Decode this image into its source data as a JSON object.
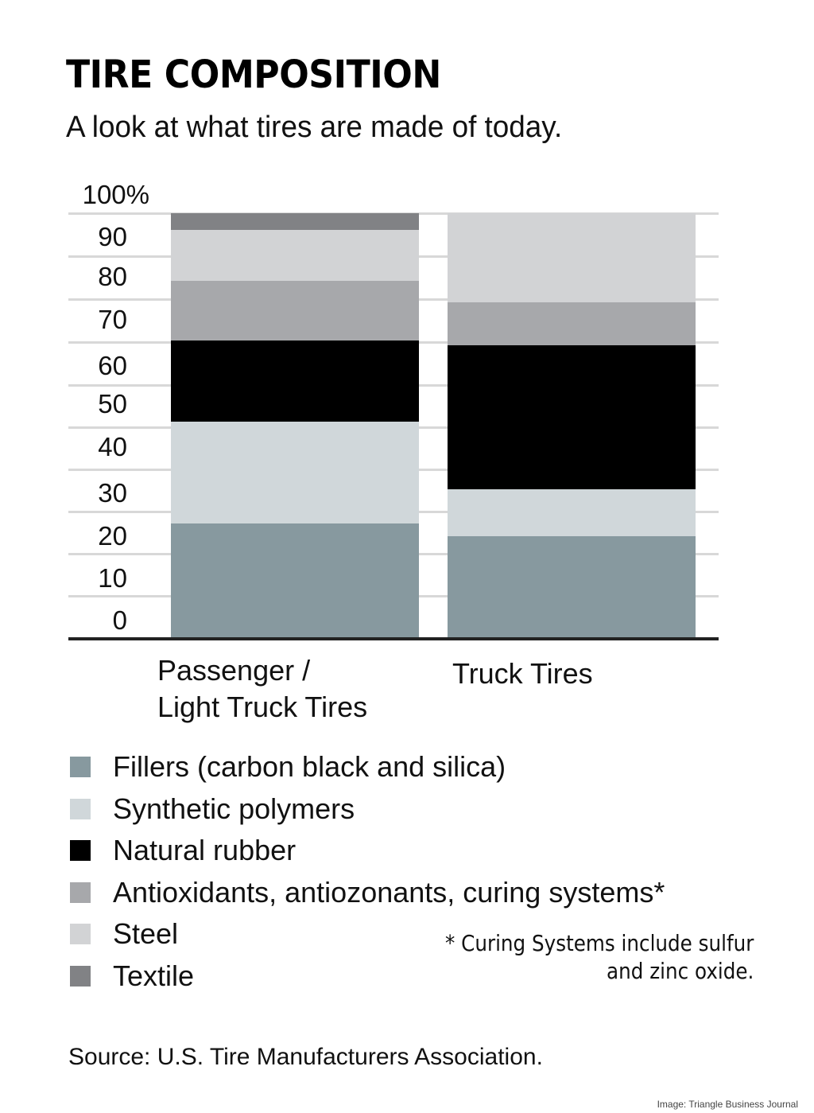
{
  "header": {
    "title": "TIRE COMPOSITION",
    "subtitle": "A look at what tires are made of today."
  },
  "axis": {
    "y_ticks": [
      "100%",
      "90",
      "80",
      "70",
      "60",
      "50",
      "40",
      "30",
      "20",
      "10",
      "0"
    ]
  },
  "categories": [
    "Passenger / Light Truck Tires",
    "Truck Tires"
  ],
  "x_labels": [
    {
      "line1": "Passenger /",
      "line2": "Light Truck Tires"
    },
    {
      "line1": "Truck Tires",
      "line2": ""
    }
  ],
  "legend": [
    {
      "label": "Fillers (carbon black and silica)",
      "color": "#87999f"
    },
    {
      "label": "Synthetic polymers",
      "color": "#d0d7da"
    },
    {
      "label": "Natural rubber",
      "color": "#000000"
    },
    {
      "label": "Antioxidants, antiozonants, curing systems*",
      "color": "#a7a8ab"
    },
    {
      "label": "Steel",
      "color": "#d2d3d5"
    },
    {
      "label": "Textile",
      "color": "#818285"
    }
  ],
  "footnote": {
    "line1": "* Curing Systems include sulfur",
    "line2": "and zinc oxide."
  },
  "source": "Source: U.S. Tire Manufacturers Association.",
  "credit": "Image: Triangle Business Journal",
  "chart_data": {
    "type": "bar",
    "stacked": true,
    "title": "TIRE COMPOSITION",
    "subtitle": "A look at what tires are made of today.",
    "xlabel": "",
    "ylabel": "",
    "ylim": [
      0,
      100
    ],
    "y_unit": "%",
    "y_ticks": [
      0,
      10,
      20,
      30,
      40,
      50,
      60,
      70,
      80,
      90,
      100
    ],
    "grid": true,
    "legend_position": "bottom",
    "categories": [
      "Passenger / Light Truck Tires",
      "Truck Tires"
    ],
    "series": [
      {
        "name": "Fillers (carbon black and silica)",
        "color": "#87999f",
        "values": [
          27,
          24
        ]
      },
      {
        "name": "Synthetic polymers",
        "color": "#d0d7da",
        "values": [
          24,
          11
        ]
      },
      {
        "name": "Natural rubber",
        "color": "#000000",
        "values": [
          19,
          34
        ]
      },
      {
        "name": "Antioxidants, antiozonants, curing systems*",
        "color": "#a7a8ab",
        "values": [
          14,
          10
        ]
      },
      {
        "name": "Steel",
        "color": "#d2d3d5",
        "values": [
          12,
          21
        ]
      },
      {
        "name": "Textile",
        "color": "#818285",
        "values": [
          4,
          0
        ]
      }
    ],
    "annotations": [
      "* Curing Systems include sulfur and zinc oxide."
    ],
    "source": "Source: U.S. Tire Manufacturers Association."
  }
}
